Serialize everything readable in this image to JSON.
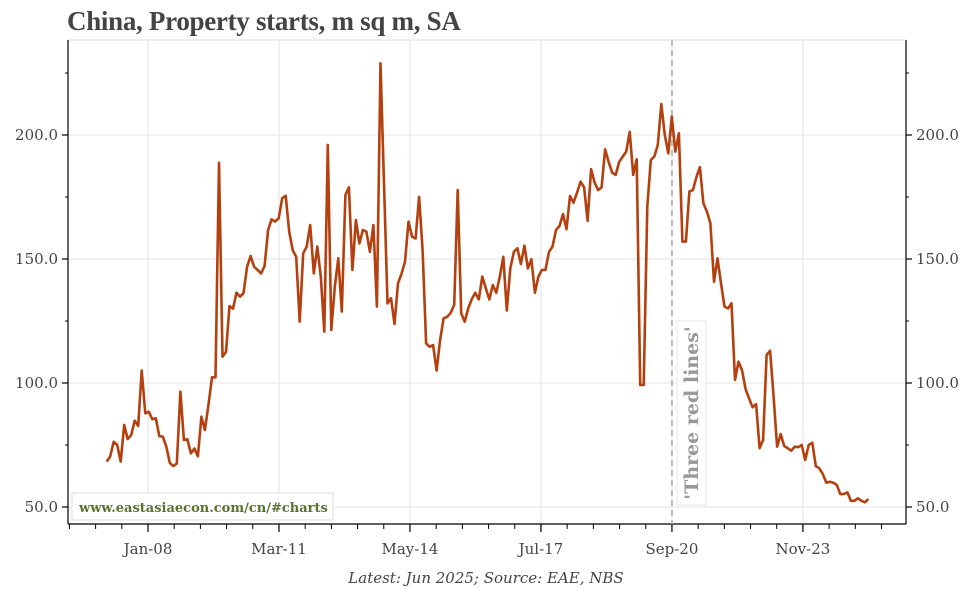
{
  "chart_data": {
    "type": "line",
    "title": "China, Property starts, m sq m, SA",
    "xlabel": "",
    "ylabel": "",
    "source": "Latest: Jun 2025; Source: EAE, NBS",
    "watermark": "www.eastasiaecon.com/cn/#charts",
    "annotation": {
      "text": "'Three red lines'",
      "date": "Sep-20"
    },
    "ylim": [
      43.5,
      238
    ],
    "y_ticks": [
      {
        "value": 50,
        "label": "50.0"
      },
      {
        "value": 100,
        "label": "100.0"
      },
      {
        "value": 150,
        "label": "150.0"
      },
      {
        "value": 200,
        "label": "200.0"
      }
    ],
    "x_ticks": [
      {
        "months_from_jan08": 0,
        "label": "Jan-08"
      },
      {
        "months_from_jan08": 38,
        "label": "Mar-11"
      },
      {
        "months_from_jan08": 76,
        "label": "May-14"
      },
      {
        "months_from_jan08": 114,
        "label": "Jul-17"
      },
      {
        "months_from_jan08": 152,
        "label": "Sep-20"
      },
      {
        "months_from_jan08": 190,
        "label": "Nov-23"
      }
    ],
    "grid": true,
    "line_color": "#b5400f",
    "series": [
      {
        "name": "Property starts",
        "start": "2007-01",
        "end": "2025-06",
        "values": [
          68.3,
          70.3,
          76.3,
          75,
          68.3,
          83.1,
          77.4,
          79,
          84.8,
          82.7,
          105,
          87.8,
          88.4,
          85.4,
          85.8,
          78.6,
          78.4,
          74.3,
          67.8,
          66.5,
          67.5,
          96.5,
          77,
          77.3,
          71.6,
          73.6,
          70.5,
          86.4,
          81,
          91,
          102.3,
          102.3,
          188.8,
          110.6,
          112.6,
          131,
          130,
          136.4,
          134.8,
          136.2,
          146.9,
          151.2,
          146.9,
          145.6,
          144.2,
          147.2,
          161.7,
          166,
          165.1,
          166.4,
          174.5,
          175.5,
          161,
          153.6,
          150.9,
          124.7,
          152.3,
          155,
          163.7,
          144.2,
          155,
          142.9,
          120.7,
          196,
          121.4,
          138.8,
          150.3,
          128.8,
          175.8,
          178.9,
          145.6,
          165.7,
          156.3,
          161.7,
          161,
          152.9,
          163.7,
          130.8,
          228.9,
          180.5,
          132.1,
          134.2,
          123.8,
          140.2,
          144,
          148.9,
          165.1,
          159,
          158.3,
          175.1,
          153.6,
          116,
          114.6,
          115.3,
          105,
          117.3,
          126.1,
          126.7,
          128.3,
          131.5,
          177.8,
          128.1,
          124.7,
          130.1,
          133.7,
          136.4,
          133.7,
          142.9,
          138.2,
          133.7,
          139.5,
          136.4,
          142.9,
          150.9,
          129.2,
          146.2,
          152.9,
          154.3,
          148,
          155.4,
          146.2,
          149.9,
          136.4,
          142.9,
          145.6,
          145.6,
          152.9,
          155,
          161.7,
          163.3,
          168.1,
          162,
          175.4,
          172.7,
          176.7,
          181.2,
          178.9,
          165.4,
          186.2,
          180.8,
          177.8,
          178.9,
          194.2,
          189.2,
          184.8,
          183.9,
          189.2,
          191.3,
          193.3,
          201.3,
          183.9,
          190.2,
          99.2,
          99.2,
          171.1,
          189.9,
          191.3,
          196,
          212.5,
          200,
          192.6,
          207.4,
          193.3,
          200.7,
          157,
          157,
          177.2,
          177.8,
          183,
          187,
          172.5,
          169.1,
          164.4,
          140.8,
          150.3,
          140.2,
          130.8,
          130.1,
          132.1,
          101.2,
          108.6,
          105.2,
          97.5,
          93.8,
          90.2,
          91.5,
          73.7,
          77,
          111.3,
          113,
          94.5,
          74.3,
          79.4,
          74.6,
          73.7,
          72.7,
          74.3,
          74.1,
          75,
          69,
          75,
          75.9,
          66.5,
          65.6,
          63.3,
          59.8,
          60.2,
          59.8,
          58.9,
          55.2,
          55.2,
          55.9,
          52.5,
          52.5,
          53.5,
          52.5,
          51.9,
          53.2
        ]
      }
    ]
  }
}
